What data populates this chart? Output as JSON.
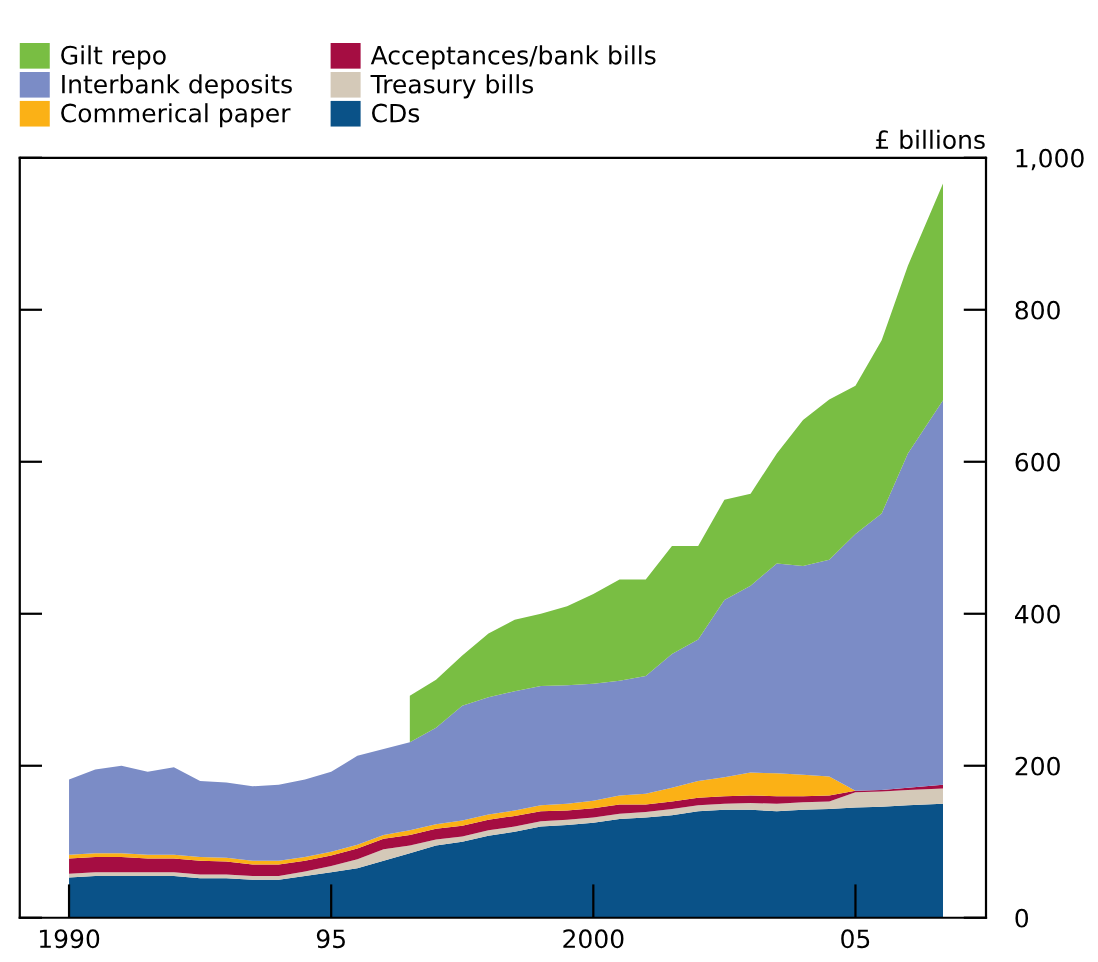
{
  "chart_data": {
    "type": "area",
    "stacked": true,
    "ylabel": "£ billions",
    "x": [
      1990,
      1990.5,
      1991,
      1991.5,
      1992,
      1992.5,
      1993,
      1993.5,
      1994,
      1994.5,
      1995,
      1995.5,
      1996,
      1996.5,
      1997,
      1997.5,
      1998,
      1998.5,
      1999,
      1999.5,
      2000,
      2000.5,
      2001,
      2001.5,
      2002,
      2002.5,
      2003,
      2003.5,
      2004,
      2004.5,
      2005,
      2005.5,
      2006,
      2006.67
    ],
    "series": [
      {
        "name": "CDs",
        "color": "#0a5288",
        "values": [
          53,
          55,
          55,
          55,
          55,
          52,
          52,
          50,
          50,
          55,
          60,
          65,
          75,
          85,
          95,
          100,
          108,
          113,
          120,
          122,
          125,
          130,
          132,
          135,
          140,
          142,
          142,
          140,
          142,
          143,
          145,
          146,
          148,
          150
        ]
      },
      {
        "name": "Treasury bills",
        "color": "#d4c9b8",
        "values": [
          5,
          5,
          5,
          5,
          5,
          5,
          5,
          5,
          5,
          6,
          8,
          12,
          15,
          10,
          8,
          7,
          7,
          7,
          7,
          7,
          7,
          7,
          7,
          8,
          8,
          8,
          9,
          10,
          10,
          10,
          20,
          20,
          20,
          20
        ]
      },
      {
        "name": "Acceptances/bank bills",
        "color": "#a50d42",
        "values": [
          20,
          20,
          20,
          18,
          18,
          18,
          17,
          15,
          15,
          14,
          14,
          14,
          14,
          14,
          14,
          14,
          14,
          14,
          13,
          12,
          12,
          12,
          10,
          10,
          10,
          10,
          10,
          10,
          8,
          8,
          2,
          2,
          3,
          5
        ]
      },
      {
        "name": "Commerical paper",
        "color": "#fbb116",
        "values": [
          5,
          5,
          5,
          5,
          5,
          5,
          5,
          5,
          5,
          5,
          5,
          5,
          5,
          6,
          6,
          7,
          7,
          7,
          8,
          9,
          10,
          12,
          14,
          18,
          22,
          25,
          30,
          30,
          28,
          25,
          0,
          0,
          0,
          0
        ]
      },
      {
        "name": "Interbank deposits",
        "color": "#7b8cc6",
        "values": [
          99,
          110,
          115,
          109,
          115,
          100,
          99,
          98,
          100,
          102,
          105,
          117,
          113,
          116,
          127,
          151,
          154,
          157,
          157,
          156,
          154,
          151,
          155,
          176,
          186,
          233,
          246,
          276,
          275,
          285,
          338,
          364,
          440,
          506
        ]
      },
      {
        "name": "Gilt repo",
        "color": "#79be43",
        "values": [
          null,
          null,
          null,
          null,
          null,
          null,
          null,
          null,
          null,
          null,
          null,
          null,
          null,
          61,
          63,
          66,
          84,
          94,
          95,
          104,
          118,
          133,
          127,
          142,
          123,
          132,
          121,
          145,
          192,
          211,
          195,
          228,
          247,
          285
        ]
      }
    ],
    "xlim": [
      1989.06,
      2007.49
    ],
    "xticks": [
      {
        "value": 1990,
        "label": "1990"
      },
      {
        "value": 1995,
        "label": "95"
      },
      {
        "value": 2000,
        "label": "2000"
      },
      {
        "value": 2005,
        "label": "05"
      }
    ],
    "ylim": [
      0,
      1000
    ],
    "yticks": [
      0,
      200,
      400,
      600,
      800,
      {
        "value": 1000,
        "label": "1,000"
      }
    ],
    "legend": "top left",
    "grid": false
  }
}
